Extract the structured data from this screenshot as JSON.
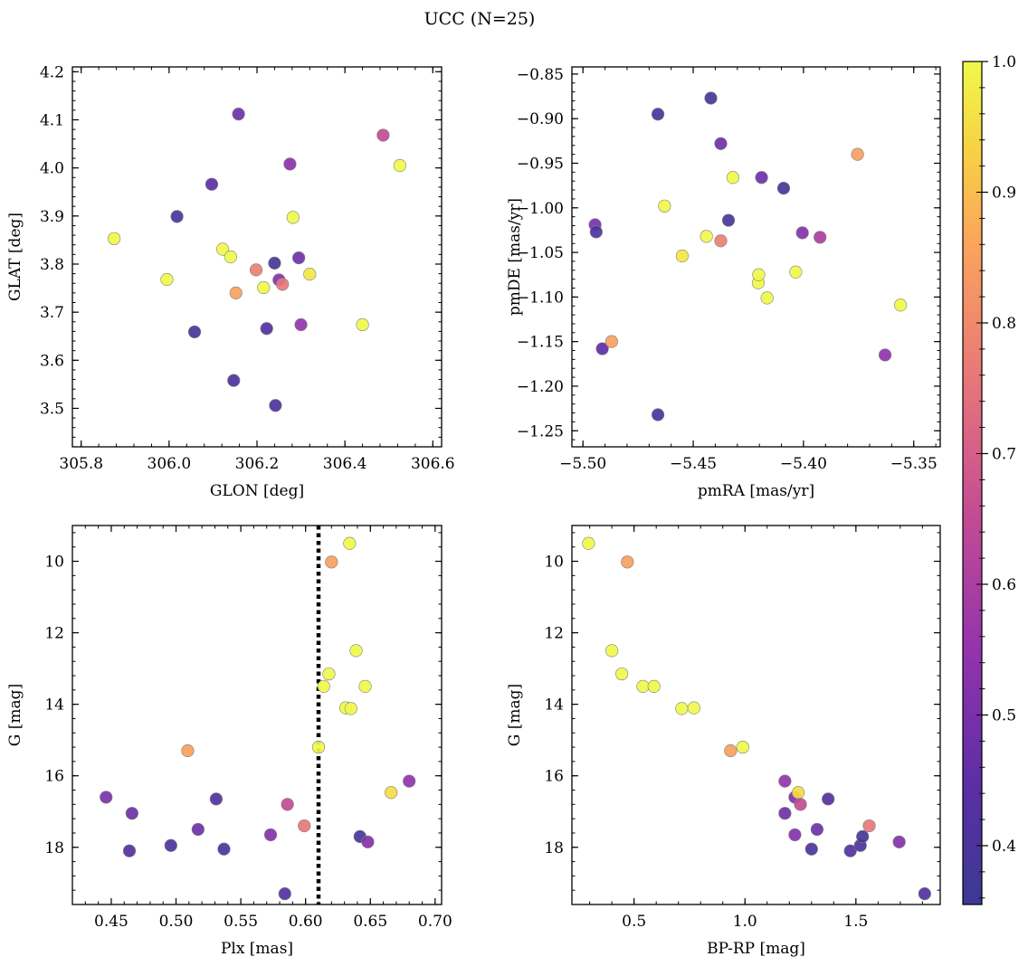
{
  "figure": {
    "title": "UCC (N=25)"
  },
  "colors": {
    "colormap": "plasma",
    "edge": "#808080",
    "frame": "#000000"
  },
  "chart_data": [
    {
      "type": "scatter",
      "xlabel": "GLON [deg]",
      "ylabel": "GLAT [deg]",
      "xlim": [
        305.78,
        306.62
      ],
      "ylim": [
        3.42,
        4.21
      ],
      "xticks": [
        305.8,
        306.0,
        306.2,
        306.4,
        306.6
      ],
      "xticklabels": [
        "305.8",
        "306.0",
        "306.2",
        "306.4",
        "306.6"
      ],
      "yticks": [
        3.5,
        3.6,
        3.7,
        3.8,
        3.9,
        4.0,
        4.1,
        4.2
      ],
      "yticklabels": [
        "3.5",
        "3.6",
        "3.7",
        "3.8",
        "3.9",
        "4.0",
        "4.1",
        "4.2"
      ],
      "y_inverted": false,
      "points": [
        {
          "x": 305.875,
          "y": 3.853,
          "c": 1.0
        },
        {
          "x": 305.995,
          "y": 3.768,
          "c": 1.0
        },
        {
          "x": 306.018,
          "y": 3.899,
          "c": 0.4
        },
        {
          "x": 306.058,
          "y": 3.659,
          "c": 0.38
        },
        {
          "x": 306.097,
          "y": 3.966,
          "c": 0.45
        },
        {
          "x": 306.122,
          "y": 3.831,
          "c": 1.0
        },
        {
          "x": 306.14,
          "y": 3.815,
          "c": 1.0
        },
        {
          "x": 306.147,
          "y": 3.558,
          "c": 0.4
        },
        {
          "x": 306.152,
          "y": 3.74,
          "c": 0.85
        },
        {
          "x": 306.158,
          "y": 4.112,
          "c": 0.48
        },
        {
          "x": 306.198,
          "y": 3.788,
          "c": 0.78
        },
        {
          "x": 306.215,
          "y": 3.751,
          "c": 1.0
        },
        {
          "x": 306.222,
          "y": 3.666,
          "c": 0.42
        },
        {
          "x": 306.24,
          "y": 3.802,
          "c": 0.38
        },
        {
          "x": 306.242,
          "y": 3.506,
          "c": 0.4
        },
        {
          "x": 306.25,
          "y": 3.767,
          "c": 0.52
        },
        {
          "x": 306.258,
          "y": 3.758,
          "c": 0.76
        },
        {
          "x": 306.275,
          "y": 4.008,
          "c": 0.53
        },
        {
          "x": 306.282,
          "y": 3.897,
          "c": 1.0
        },
        {
          "x": 306.295,
          "y": 3.813,
          "c": 0.48
        },
        {
          "x": 306.3,
          "y": 3.674,
          "c": 0.55
        },
        {
          "x": 306.32,
          "y": 3.779,
          "c": 0.97
        },
        {
          "x": 306.44,
          "y": 3.674,
          "c": 1.0
        },
        {
          "x": 306.487,
          "y": 4.068,
          "c": 0.65
        },
        {
          "x": 306.525,
          "y": 4.005,
          "c": 1.0
        }
      ]
    },
    {
      "type": "scatter",
      "xlabel": "pmRA [mas/yr]",
      "ylabel": "pmDE [mas/yr]",
      "xlim": [
        -5.505,
        -5.338
      ],
      "ylim": [
        -1.268,
        -0.842
      ],
      "xticks": [
        -5.5,
        -5.45,
        -5.4,
        -5.35
      ],
      "xticklabels": [
        "−5.50",
        "−5.45",
        "−5.40",
        "−5.35"
      ],
      "yticks": [
        -1.25,
        -1.2,
        -1.15,
        -1.1,
        -1.05,
        -1.0,
        -0.95,
        -0.9,
        -0.85
      ],
      "yticklabels": [
        "−1.25",
        "−1.20",
        "−1.15",
        "−1.10",
        "−1.05",
        "−1.00",
        "−0.95",
        "−0.90",
        "−0.85"
      ],
      "y_inverted": false,
      "points": [
        {
          "x": -5.4945,
          "y": -1.019,
          "c": 0.5
        },
        {
          "x": -5.494,
          "y": -1.027,
          "c": 0.4
        },
        {
          "x": -5.4912,
          "y": -1.158,
          "c": 0.45
        },
        {
          "x": -5.487,
          "y": -1.15,
          "c": 0.85
        },
        {
          "x": -5.466,
          "y": -0.895,
          "c": 0.4
        },
        {
          "x": -5.466,
          "y": -1.232,
          "c": 0.4
        },
        {
          "x": -5.463,
          "y": -0.998,
          "c": 1.0
        },
        {
          "x": -5.455,
          "y": -1.054,
          "c": 0.97
        },
        {
          "x": -5.444,
          "y": -1.032,
          "c": 1.0
        },
        {
          "x": -5.442,
          "y": -0.877,
          "c": 0.38
        },
        {
          "x": -5.4375,
          "y": -0.928,
          "c": 0.48
        },
        {
          "x": -5.4375,
          "y": -1.037,
          "c": 0.78
        },
        {
          "x": -5.434,
          "y": -1.014,
          "c": 0.38
        },
        {
          "x": -5.432,
          "y": -0.966,
          "c": 1.0
        },
        {
          "x": -5.4205,
          "y": -1.084,
          "c": 1.0
        },
        {
          "x": -5.4203,
          "y": -1.075,
          "c": 1.0
        },
        {
          "x": -5.419,
          "y": -0.966,
          "c": 0.48
        },
        {
          "x": -5.4165,
          "y": -1.101,
          "c": 1.0
        },
        {
          "x": -5.409,
          "y": -0.978,
          "c": 0.38
        },
        {
          "x": -5.4035,
          "y": -1.072,
          "c": 1.0
        },
        {
          "x": -5.4005,
          "y": -1.028,
          "c": 0.52
        },
        {
          "x": -5.3925,
          "y": -1.033,
          "c": 0.6
        },
        {
          "x": -5.3755,
          "y": -0.94,
          "c": 0.85
        },
        {
          "x": -5.363,
          "y": -1.165,
          "c": 0.55
        },
        {
          "x": -5.356,
          "y": -1.109,
          "c": 1.0
        }
      ]
    },
    {
      "type": "scatter",
      "xlabel": "Plx [mas]",
      "ylabel": "G [mag]",
      "xlim": [
        0.42,
        0.705
      ],
      "ylim": [
        9.0,
        19.6
      ],
      "xticks": [
        0.45,
        0.5,
        0.55,
        0.6,
        0.65,
        0.7
      ],
      "xticklabels": [
        "0.45",
        "0.50",
        "0.55",
        "0.60",
        "0.65",
        "0.70"
      ],
      "yticks": [
        10,
        12,
        14,
        16,
        18
      ],
      "yticklabels": [
        "10",
        "12",
        "14",
        "16",
        "18"
      ],
      "y_inverted": true,
      "vline": {
        "x": 0.61,
        "style": "dotted"
      },
      "points": [
        {
          "x": 0.446,
          "y": 16.6,
          "c": 0.5
        },
        {
          "x": 0.464,
          "y": 18.1,
          "c": 0.42
        },
        {
          "x": 0.466,
          "y": 17.05,
          "c": 0.48
        },
        {
          "x": 0.496,
          "y": 17.95,
          "c": 0.4
        },
        {
          "x": 0.509,
          "y": 15.3,
          "c": 0.85
        },
        {
          "x": 0.517,
          "y": 17.5,
          "c": 0.48
        },
        {
          "x": 0.531,
          "y": 16.65,
          "c": 0.42
        },
        {
          "x": 0.537,
          "y": 18.05,
          "c": 0.4
        },
        {
          "x": 0.573,
          "y": 17.65,
          "c": 0.52
        },
        {
          "x": 0.584,
          "y": 19.3,
          "c": 0.42
        },
        {
          "x": 0.586,
          "y": 16.8,
          "c": 0.65
        },
        {
          "x": 0.599,
          "y": 17.4,
          "c": 0.76
        },
        {
          "x": 0.61,
          "y": 15.2,
          "c": 1.0
        },
        {
          "x": 0.614,
          "y": 13.5,
          "c": 1.0
        },
        {
          "x": 0.618,
          "y": 13.15,
          "c": 1.0
        },
        {
          "x": 0.62,
          "y": 10.02,
          "c": 0.85
        },
        {
          "x": 0.631,
          "y": 14.1,
          "c": 1.0
        },
        {
          "x": 0.634,
          "y": 9.5,
          "c": 1.0
        },
        {
          "x": 0.635,
          "y": 14.12,
          "c": 1.0
        },
        {
          "x": 0.639,
          "y": 12.5,
          "c": 1.0
        },
        {
          "x": 0.642,
          "y": 17.7,
          "c": 0.38
        },
        {
          "x": 0.646,
          "y": 13.5,
          "c": 1.0
        },
        {
          "x": 0.648,
          "y": 17.85,
          "c": 0.52
        },
        {
          "x": 0.666,
          "y": 16.47,
          "c": 0.95
        },
        {
          "x": 0.68,
          "y": 16.15,
          "c": 0.55
        }
      ]
    },
    {
      "type": "scatter",
      "xlabel": "BP-RP [mag]",
      "ylabel": "G [mag]",
      "xlim": [
        0.22,
        1.88
      ],
      "ylim": [
        9.0,
        19.6
      ],
      "xticks": [
        0.5,
        1.0,
        1.5
      ],
      "xticklabels": [
        "0.5",
        "1.0",
        "1.5"
      ],
      "yticks": [
        10,
        12,
        14,
        16,
        18
      ],
      "yticklabels": [
        "10",
        "12",
        "14",
        "16",
        "18"
      ],
      "y_inverted": true,
      "points": [
        {
          "x": 0.295,
          "y": 9.5,
          "c": 1.0
        },
        {
          "x": 0.47,
          "y": 10.02,
          "c": 0.85
        },
        {
          "x": 0.4,
          "y": 12.5,
          "c": 1.0
        },
        {
          "x": 0.445,
          "y": 13.15,
          "c": 1.0
        },
        {
          "x": 0.54,
          "y": 13.5,
          "c": 1.0
        },
        {
          "x": 0.59,
          "y": 13.5,
          "c": 1.0
        },
        {
          "x": 0.715,
          "y": 14.12,
          "c": 1.0
        },
        {
          "x": 0.77,
          "y": 14.1,
          "c": 1.0
        },
        {
          "x": 0.935,
          "y": 15.3,
          "c": 0.85
        },
        {
          "x": 0.99,
          "y": 15.2,
          "c": 1.0
        },
        {
          "x": 1.18,
          "y": 16.15,
          "c": 0.55
        },
        {
          "x": 1.18,
          "y": 17.05,
          "c": 0.48
        },
        {
          "x": 1.225,
          "y": 16.6,
          "c": 0.5
        },
        {
          "x": 1.24,
          "y": 16.47,
          "c": 0.95
        },
        {
          "x": 1.225,
          "y": 17.65,
          "c": 0.52
        },
        {
          "x": 1.25,
          "y": 16.8,
          "c": 0.65
        },
        {
          "x": 1.3,
          "y": 18.05,
          "c": 0.4
        },
        {
          "x": 1.325,
          "y": 17.5,
          "c": 0.48
        },
        {
          "x": 1.375,
          "y": 16.65,
          "c": 0.42
        },
        {
          "x": 1.475,
          "y": 18.1,
          "c": 0.42
        },
        {
          "x": 1.52,
          "y": 17.95,
          "c": 0.4
        },
        {
          "x": 1.53,
          "y": 17.7,
          "c": 0.38
        },
        {
          "x": 1.56,
          "y": 17.4,
          "c": 0.76
        },
        {
          "x": 1.695,
          "y": 17.85,
          "c": 0.52
        },
        {
          "x": 1.81,
          "y": 19.3,
          "c": 0.42
        }
      ]
    }
  ],
  "colorbar": {
    "type": "colorbar",
    "cmap": "plasma",
    "range": [
      0.355,
      1.0
    ],
    "ticks": [
      0.4,
      0.5,
      0.6,
      0.7,
      0.8,
      0.9,
      1.0
    ],
    "ticklabels": [
      "0.4",
      "0.5",
      "0.6",
      "0.7",
      "0.8",
      "0.9",
      "1.0"
    ]
  }
}
